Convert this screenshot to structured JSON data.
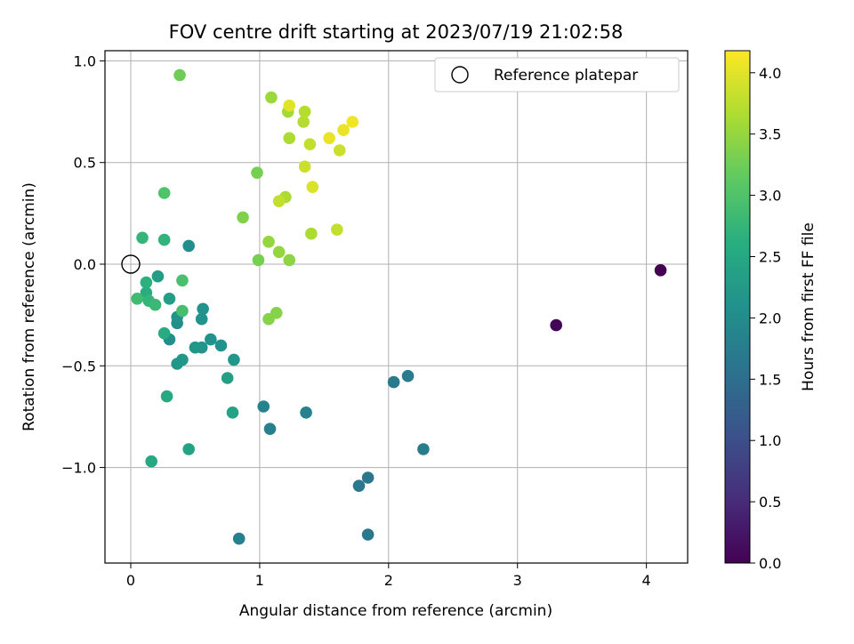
{
  "chart_data": {
    "type": "scatter",
    "title": "FOV centre drift starting at 2023/07/19 21:02:58",
    "xlabel": "Angular distance from reference (arcmin)",
    "ylabel": "Rotation from reference (arcmin)",
    "xlim": [
      -0.2,
      4.32
    ],
    "ylim": [
      -1.47,
      1.05
    ],
    "xticks": [
      0,
      1,
      2,
      3,
      4
    ],
    "xtick_labels": [
      "0",
      "1",
      "2",
      "3",
      "4"
    ],
    "yticks": [
      -1.0,
      -0.5,
      0.0,
      0.5,
      1.0
    ],
    "ytick_labels": [
      "−1.0",
      "−0.5",
      "0.0",
      "0.5",
      "1.0"
    ],
    "grid": true,
    "legend": {
      "placement": "upper-right",
      "entries": [
        "Reference platepar"
      ]
    },
    "reference_point": {
      "x": 0,
      "y": 0
    },
    "colorbar": {
      "label": "Hours from first FF file",
      "colormap": "viridis",
      "range": [
        0.0,
        4.18
      ],
      "ticks": [
        0.0,
        0.5,
        1.0,
        1.5,
        2.0,
        2.5,
        3.0,
        3.5,
        4.0
      ],
      "tick_labels": [
        "0.0",
        "0.5",
        "1.0",
        "1.5",
        "2.0",
        "2.5",
        "3.0",
        "3.5",
        "4.0"
      ]
    },
    "points": [
      {
        "x": 4.11,
        "y": -0.03,
        "c": 0.0
      },
      {
        "x": 3.3,
        "y": -0.3,
        "c": 0.05
      },
      {
        "x": 1.84,
        "y": -1.33,
        "c": 1.65
      },
      {
        "x": 1.77,
        "y": -1.09,
        "c": 1.65
      },
      {
        "x": 1.84,
        "y": -1.05,
        "c": 1.65
      },
      {
        "x": 2.04,
        "y": -0.58,
        "c": 1.7
      },
      {
        "x": 2.15,
        "y": -0.55,
        "c": 1.72
      },
      {
        "x": 2.27,
        "y": -0.91,
        "c": 1.75
      },
      {
        "x": 0.84,
        "y": -1.35,
        "c": 1.8
      },
      {
        "x": 1.08,
        "y": -0.81,
        "c": 1.8
      },
      {
        "x": 1.03,
        "y": -0.7,
        "c": 1.85
      },
      {
        "x": 1.36,
        "y": -0.73,
        "c": 1.85
      },
      {
        "x": 0.45,
        "y": 0.09,
        "c": 2.05
      },
      {
        "x": 0.3,
        "y": -0.37,
        "c": 2.05
      },
      {
        "x": 0.36,
        "y": -0.29,
        "c": 2.05
      },
      {
        "x": 0.36,
        "y": -0.26,
        "c": 2.1
      },
      {
        "x": 0.56,
        "y": -0.22,
        "c": 2.1
      },
      {
        "x": 0.55,
        "y": -0.27,
        "c": 2.1
      },
      {
        "x": 0.62,
        "y": -0.37,
        "c": 2.1
      },
      {
        "x": 0.7,
        "y": -0.4,
        "c": 2.1
      },
      {
        "x": 0.55,
        "y": -0.41,
        "c": 2.15
      },
      {
        "x": 0.5,
        "y": -0.41,
        "c": 2.2
      },
      {
        "x": 0.4,
        "y": -0.47,
        "c": 2.2
      },
      {
        "x": 0.36,
        "y": -0.49,
        "c": 2.2
      },
      {
        "x": 0.8,
        "y": -0.47,
        "c": 2.2
      },
      {
        "x": 0.21,
        "y": -0.06,
        "c": 2.3
      },
      {
        "x": 0.3,
        "y": -0.17,
        "c": 2.3
      },
      {
        "x": 0.75,
        "y": -0.56,
        "c": 2.35
      },
      {
        "x": 0.79,
        "y": -0.73,
        "c": 2.4
      },
      {
        "x": 0.45,
        "y": -0.91,
        "c": 2.4
      },
      {
        "x": 0.16,
        "y": -0.97,
        "c": 2.5
      },
      {
        "x": 0.28,
        "y": -0.65,
        "c": 2.5
      },
      {
        "x": 0.26,
        "y": -0.34,
        "c": 2.55
      },
      {
        "x": 0.12,
        "y": -0.14,
        "c": 2.6
      },
      {
        "x": 0.12,
        "y": -0.09,
        "c": 2.65
      },
      {
        "x": 0.26,
        "y": 0.12,
        "c": 2.7
      },
      {
        "x": 0.09,
        "y": 0.13,
        "c": 2.75
      },
      {
        "x": 0.14,
        "y": -0.18,
        "c": 2.75
      },
      {
        "x": 0.19,
        "y": -0.2,
        "c": 2.8
      },
      {
        "x": 0.05,
        "y": -0.17,
        "c": 2.85
      },
      {
        "x": 0.4,
        "y": -0.23,
        "c": 2.9
      },
      {
        "x": 0.4,
        "y": -0.08,
        "c": 2.95
      },
      {
        "x": 0.26,
        "y": 0.35,
        "c": 3.0
      },
      {
        "x": 0.38,
        "y": 0.93,
        "c": 3.25
      },
      {
        "x": 0.98,
        "y": 0.45,
        "c": 3.3
      },
      {
        "x": 0.99,
        "y": 0.02,
        "c": 3.3
      },
      {
        "x": 0.87,
        "y": 0.23,
        "c": 3.35
      },
      {
        "x": 1.13,
        "y": -0.24,
        "c": 3.4
      },
      {
        "x": 1.07,
        "y": -0.27,
        "c": 3.4
      },
      {
        "x": 1.23,
        "y": 0.02,
        "c": 3.45
      },
      {
        "x": 1.07,
        "y": 0.11,
        "c": 3.5
      },
      {
        "x": 1.15,
        "y": 0.06,
        "c": 3.5
      },
      {
        "x": 1.09,
        "y": 0.82,
        "c": 3.55
      },
      {
        "x": 1.22,
        "y": 0.75,
        "c": 3.6
      },
      {
        "x": 1.2,
        "y": 0.33,
        "c": 3.65
      },
      {
        "x": 1.4,
        "y": 0.15,
        "c": 3.65
      },
      {
        "x": 1.23,
        "y": 0.62,
        "c": 3.65
      },
      {
        "x": 1.34,
        "y": 0.7,
        "c": 3.7
      },
      {
        "x": 1.35,
        "y": 0.75,
        "c": 3.7
      },
      {
        "x": 1.15,
        "y": 0.31,
        "c": 3.8
      },
      {
        "x": 1.39,
        "y": 0.59,
        "c": 3.8
      },
      {
        "x": 1.35,
        "y": 0.48,
        "c": 3.85
      },
      {
        "x": 1.6,
        "y": 0.17,
        "c": 3.8
      },
      {
        "x": 1.62,
        "y": 0.56,
        "c": 3.85
      },
      {
        "x": 1.41,
        "y": 0.38,
        "c": 3.95
      },
      {
        "x": 1.23,
        "y": 0.78,
        "c": 4.0
      },
      {
        "x": 1.54,
        "y": 0.62,
        "c": 4.05
      },
      {
        "x": 1.65,
        "y": 0.66,
        "c": 4.05
      },
      {
        "x": 1.72,
        "y": 0.7,
        "c": 4.1
      }
    ]
  }
}
